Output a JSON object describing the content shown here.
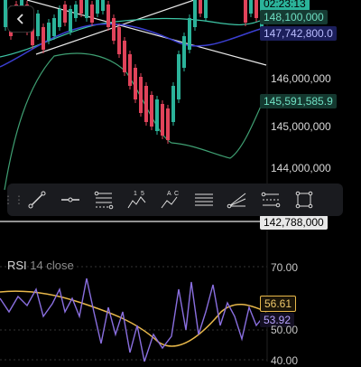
{
  "header": {
    "back_icon": "chevron-left-icon"
  },
  "price_axis": {
    "timer": "02:23:13",
    "tags": {
      "upper_band": "148,100,000",
      "current": "147,742,800.0",
      "middle_band": "145,591,585.9",
      "crosshair": "142,788,000"
    },
    "labels": [
      "146,000,000",
      "145,000,000",
      "144,000,000"
    ]
  },
  "toolbar": {
    "items": [
      {
        "name": "grip-icon"
      },
      {
        "name": "trend-line-icon"
      },
      {
        "name": "horizontal-ray-icon"
      },
      {
        "name": "fib-retracement-icon"
      },
      {
        "name": "wave-15-icon",
        "label_a": "1",
        "label_b": "5"
      },
      {
        "name": "wave-ac-icon",
        "label_a": "A",
        "label_b": "C"
      },
      {
        "name": "parallel-channel-icon"
      },
      {
        "name": "fib-fan-icon"
      },
      {
        "name": "fib-extension-icon"
      },
      {
        "name": "rectangle-icon"
      }
    ]
  },
  "rsi": {
    "title": "RSI",
    "params": "14 close",
    "levels": [
      "70.00",
      "50.00",
      "40.00"
    ],
    "value_ma": "56.61",
    "value_rsi": "53.92"
  },
  "colors": {
    "up": "#2bb39a",
    "down": "#e0435a",
    "upper_band": "#3ec6a6",
    "lower_band": "#3fa073",
    "ma_line": "#3b3fd1",
    "rsi_line": "#8a6fe0",
    "rsi_ma": "#e8b84a"
  }
}
